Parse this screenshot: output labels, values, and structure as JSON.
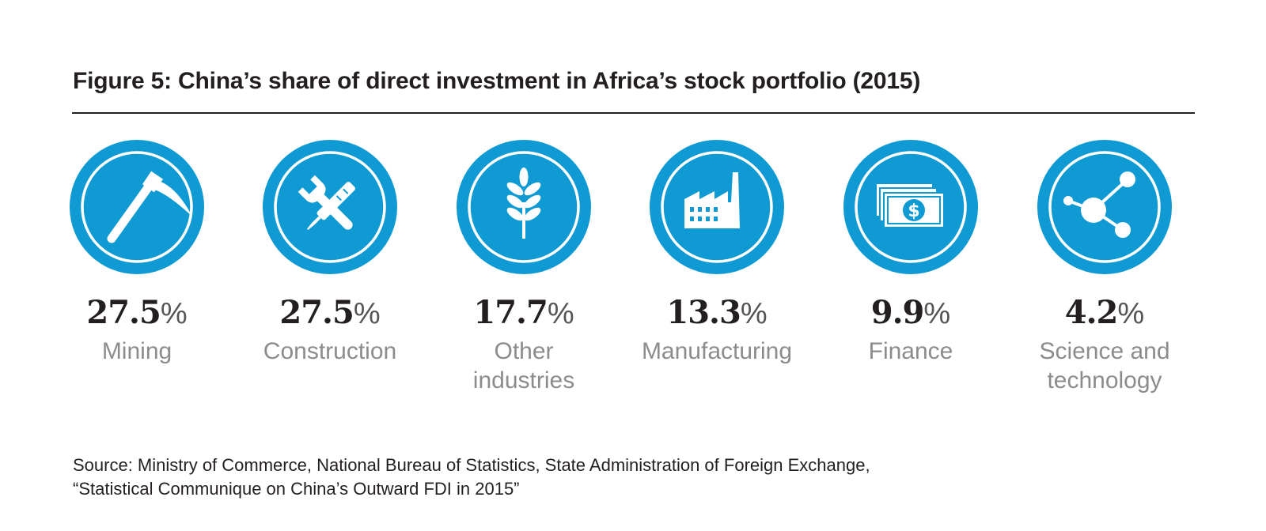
{
  "chart_data": {
    "type": "table",
    "title": "Figure 5:  China’s share of direct investment in Africa’s stock portfolio (2015)",
    "unit": "%",
    "categories": [
      "Mining",
      "Construction",
      "Other\nindustries",
      "Manufacturing",
      "Finance",
      "Science and\ntechnology"
    ],
    "values": [
      27.5,
      27.5,
      17.7,
      13.3,
      9.9,
      4.2
    ],
    "value_labels": [
      "27.5",
      "27.5",
      "17.7",
      "13.3",
      "9.9",
      "4.2"
    ],
    "icons": [
      "pickaxe-icon",
      "wrench-screwdriver-icon",
      "wheat-icon",
      "factory-icon",
      "money-icon",
      "network-icon"
    ]
  },
  "source": {
    "line1": "Source: Ministry of Commerce, National Bureau of Statistics, State Administration of Foreign Exchange,",
    "line2": "“Statistical Communique on China’s Outward FDI in 2015”"
  },
  "colors": {
    "icon_blue": "#0f9ad3",
    "title_text": "#231f20",
    "label_gray": "#8a8c8e"
  }
}
